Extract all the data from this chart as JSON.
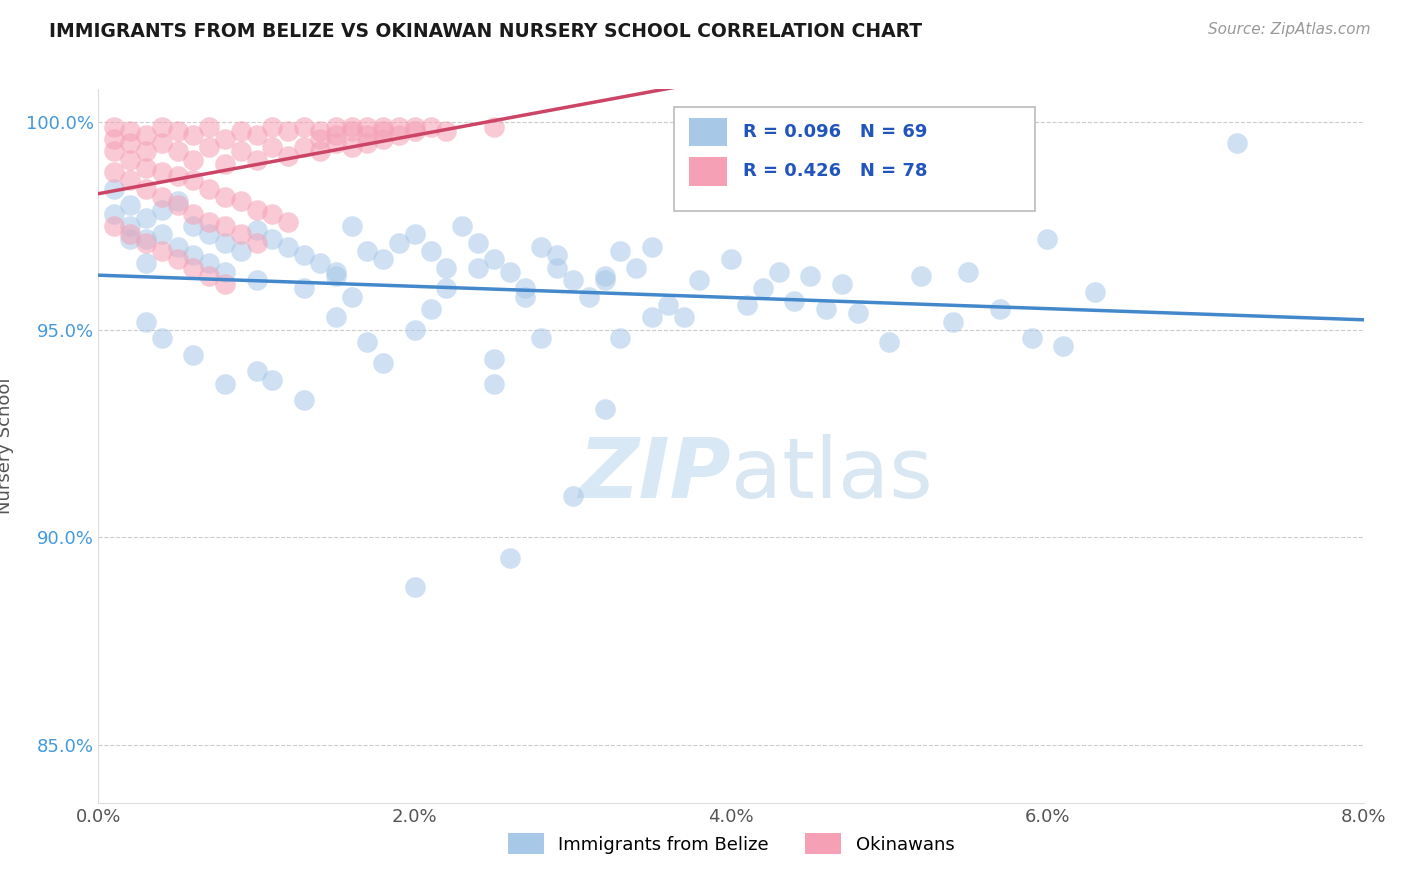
{
  "title": "IMMIGRANTS FROM BELIZE VS OKINAWAN NURSERY SCHOOL CORRELATION CHART",
  "source_text": "Source: ZipAtlas.com",
  "ylabel": "Nursery School",
  "xlim": [
    0.0,
    0.08
  ],
  "ylim": [
    0.836,
    1.008
  ],
  "xticks": [
    0.0,
    0.02,
    0.04,
    0.06,
    0.08
  ],
  "xticklabels": [
    "0.0%",
    "2.0%",
    "4.0%",
    "6.0%",
    "8.0%"
  ],
  "yticks": [
    0.85,
    0.9,
    0.95,
    1.0
  ],
  "yticklabels": [
    "85.0%",
    "90.0%",
    "95.0%",
    "100.0%"
  ],
  "legend_label_blue": "Immigrants from Belize",
  "legend_label_pink": "Okinawans",
  "blue_color": "#a8c8e8",
  "pink_color": "#f5a0b5",
  "blue_line_color": "#4488cc",
  "pink_line_color": "#cc4466",
  "blue_scatter": [
    [
      0.001,
      0.984
    ],
    [
      0.001,
      0.978
    ],
    [
      0.002,
      0.98
    ],
    [
      0.002,
      0.975
    ],
    [
      0.003,
      0.977
    ],
    [
      0.003,
      0.972
    ],
    [
      0.004,
      0.979
    ],
    [
      0.004,
      0.973
    ],
    [
      0.005,
      0.981
    ],
    [
      0.005,
      0.97
    ],
    [
      0.006,
      0.975
    ],
    [
      0.006,
      0.968
    ],
    [
      0.007,
      0.973
    ],
    [
      0.007,
      0.966
    ],
    [
      0.008,
      0.971
    ],
    [
      0.008,
      0.964
    ],
    [
      0.009,
      0.969
    ],
    [
      0.01,
      0.974
    ],
    [
      0.01,
      0.962
    ],
    [
      0.011,
      0.972
    ],
    [
      0.012,
      0.97
    ],
    [
      0.013,
      0.968
    ],
    [
      0.014,
      0.966
    ],
    [
      0.015,
      0.964
    ],
    [
      0.016,
      0.975
    ],
    [
      0.017,
      0.969
    ],
    [
      0.018,
      0.967
    ],
    [
      0.019,
      0.971
    ],
    [
      0.02,
      0.973
    ],
    [
      0.021,
      0.969
    ],
    [
      0.022,
      0.965
    ],
    [
      0.023,
      0.975
    ],
    [
      0.024,
      0.971
    ],
    [
      0.025,
      0.967
    ],
    [
      0.026,
      0.964
    ],
    [
      0.027,
      0.96
    ],
    [
      0.028,
      0.97
    ],
    [
      0.029,
      0.965
    ],
    [
      0.03,
      0.962
    ],
    [
      0.031,
      0.958
    ],
    [
      0.032,
      0.963
    ],
    [
      0.033,
      0.969
    ],
    [
      0.034,
      0.965
    ],
    [
      0.035,
      0.97
    ],
    [
      0.036,
      0.956
    ],
    [
      0.037,
      0.953
    ],
    [
      0.038,
      0.962
    ],
    [
      0.04,
      0.967
    ],
    [
      0.041,
      0.956
    ],
    [
      0.042,
      0.96
    ],
    [
      0.043,
      0.964
    ],
    [
      0.044,
      0.957
    ],
    [
      0.045,
      0.963
    ],
    [
      0.046,
      0.955
    ],
    [
      0.047,
      0.961
    ],
    [
      0.048,
      0.954
    ],
    [
      0.05,
      0.947
    ],
    [
      0.052,
      0.963
    ],
    [
      0.054,
      0.952
    ],
    [
      0.055,
      0.964
    ],
    [
      0.057,
      0.955
    ],
    [
      0.059,
      0.948
    ],
    [
      0.061,
      0.946
    ],
    [
      0.063,
      0.959
    ],
    [
      0.003,
      0.952
    ],
    [
      0.004,
      0.948
    ],
    [
      0.006,
      0.944
    ],
    [
      0.008,
      0.937
    ],
    [
      0.01,
      0.94
    ],
    [
      0.011,
      0.938
    ],
    [
      0.013,
      0.933
    ],
    [
      0.015,
      0.953
    ],
    [
      0.016,
      0.958
    ],
    [
      0.018,
      0.942
    ],
    [
      0.021,
      0.955
    ],
    [
      0.025,
      0.937
    ],
    [
      0.032,
      0.931
    ],
    [
      0.022,
      0.96
    ],
    [
      0.024,
      0.965
    ],
    [
      0.027,
      0.958
    ],
    [
      0.029,
      0.968
    ],
    [
      0.032,
      0.962
    ],
    [
      0.017,
      0.947
    ],
    [
      0.02,
      0.95
    ],
    [
      0.013,
      0.96
    ],
    [
      0.015,
      0.963
    ],
    [
      0.002,
      0.972
    ],
    [
      0.003,
      0.966
    ],
    [
      0.02,
      0.888
    ],
    [
      0.026,
      0.895
    ],
    [
      0.03,
      0.91
    ],
    [
      0.033,
      0.948
    ],
    [
      0.035,
      0.953
    ],
    [
      0.025,
      0.943
    ],
    [
      0.028,
      0.948
    ],
    [
      0.06,
      0.972
    ],
    [
      0.072,
      0.995
    ]
  ],
  "pink_scatter": [
    [
      0.001,
      0.999
    ],
    [
      0.001,
      0.996
    ],
    [
      0.002,
      0.998
    ],
    [
      0.002,
      0.995
    ],
    [
      0.003,
      0.997
    ],
    [
      0.003,
      0.993
    ],
    [
      0.004,
      0.999
    ],
    [
      0.004,
      0.995
    ],
    [
      0.005,
      0.998
    ],
    [
      0.005,
      0.993
    ],
    [
      0.006,
      0.997
    ],
    [
      0.006,
      0.991
    ],
    [
      0.007,
      0.999
    ],
    [
      0.007,
      0.994
    ],
    [
      0.008,
      0.996
    ],
    [
      0.008,
      0.99
    ],
    [
      0.009,
      0.998
    ],
    [
      0.009,
      0.993
    ],
    [
      0.01,
      0.997
    ],
    [
      0.01,
      0.991
    ],
    [
      0.011,
      0.999
    ],
    [
      0.011,
      0.994
    ],
    [
      0.012,
      0.998
    ],
    [
      0.012,
      0.992
    ],
    [
      0.013,
      0.999
    ],
    [
      0.013,
      0.994
    ],
    [
      0.014,
      0.998
    ],
    [
      0.014,
      0.993
    ],
    [
      0.015,
      0.999
    ],
    [
      0.015,
      0.995
    ],
    [
      0.016,
      0.998
    ],
    [
      0.016,
      0.994
    ],
    [
      0.017,
      0.999
    ],
    [
      0.017,
      0.995
    ],
    [
      0.018,
      0.998
    ],
    [
      0.018,
      0.996
    ],
    [
      0.019,
      0.999
    ],
    [
      0.02,
      0.998
    ],
    [
      0.021,
      0.999
    ],
    [
      0.022,
      0.998
    ],
    [
      0.001,
      0.993
    ],
    [
      0.002,
      0.991
    ],
    [
      0.003,
      0.989
    ],
    [
      0.004,
      0.988
    ],
    [
      0.005,
      0.987
    ],
    [
      0.006,
      0.986
    ],
    [
      0.007,
      0.984
    ],
    [
      0.008,
      0.982
    ],
    [
      0.009,
      0.981
    ],
    [
      0.01,
      0.979
    ],
    [
      0.011,
      0.978
    ],
    [
      0.012,
      0.976
    ],
    [
      0.001,
      0.988
    ],
    [
      0.002,
      0.986
    ],
    [
      0.003,
      0.984
    ],
    [
      0.004,
      0.982
    ],
    [
      0.005,
      0.98
    ],
    [
      0.006,
      0.978
    ],
    [
      0.007,
      0.976
    ],
    [
      0.008,
      0.975
    ],
    [
      0.009,
      0.973
    ],
    [
      0.01,
      0.971
    ],
    [
      0.001,
      0.975
    ],
    [
      0.002,
      0.973
    ],
    [
      0.003,
      0.971
    ],
    [
      0.004,
      0.969
    ],
    [
      0.005,
      0.967
    ],
    [
      0.006,
      0.965
    ],
    [
      0.007,
      0.963
    ],
    [
      0.008,
      0.961
    ],
    [
      0.014,
      0.996
    ],
    [
      0.015,
      0.997
    ],
    [
      0.016,
      0.999
    ],
    [
      0.017,
      0.997
    ],
    [
      0.018,
      0.999
    ],
    [
      0.019,
      0.997
    ],
    [
      0.02,
      0.999
    ],
    [
      0.025,
      0.999
    ]
  ],
  "watermark_color": "#c8dff0",
  "background_color": "#ffffff",
  "grid_color": "#cccccc"
}
